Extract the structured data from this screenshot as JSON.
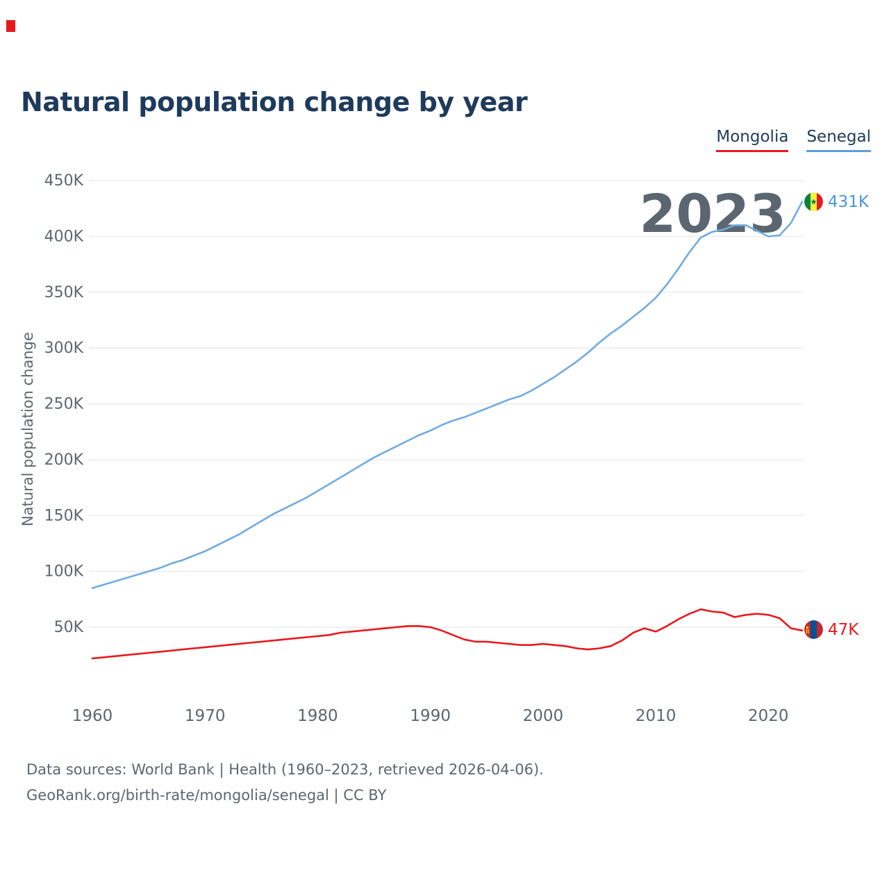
{
  "title": "Natural population change by year",
  "watermark": "2023",
  "legend": [
    {
      "label": "Mongolia",
      "color": "#e8191d"
    },
    {
      "label": "Senegal",
      "color": "#5ba0dd"
    }
  ],
  "end_labels": {
    "senegal": "431K",
    "mongolia": "47K"
  },
  "footer": {
    "line1": "Data sources: World Bank | Health (1960–2023, retrieved 2026-04-06).",
    "line2": "GeoRank.org/birth-rate/mongolia/senegal | CC BY"
  },
  "chart_data": {
    "type": "line",
    "title": "Natural population change by year",
    "xlabel": "",
    "ylabel": "Natural population change",
    "units": "thousands (K) per year",
    "x_range": [
      1960,
      2023
    ],
    "ylim": [
      0,
      465
    ],
    "yticks": [
      50,
      100,
      150,
      200,
      250,
      300,
      350,
      400,
      450
    ],
    "ytick_labels": [
      "50K",
      "100K",
      "150K",
      "200K",
      "250K",
      "300K",
      "350K",
      "400K",
      "450K"
    ],
    "xticks": [
      1960,
      1970,
      1980,
      1990,
      2000,
      2010,
      2020
    ],
    "grid": true,
    "legend_position": "top-right",
    "x": [
      1960,
      1961,
      1962,
      1963,
      1964,
      1965,
      1966,
      1967,
      1968,
      1969,
      1970,
      1971,
      1972,
      1973,
      1974,
      1975,
      1976,
      1977,
      1978,
      1979,
      1980,
      1981,
      1982,
      1983,
      1984,
      1985,
      1986,
      1987,
      1988,
      1989,
      1990,
      1991,
      1992,
      1993,
      1994,
      1995,
      1996,
      1997,
      1998,
      1999,
      2000,
      2001,
      2002,
      2003,
      2004,
      2005,
      2006,
      2007,
      2008,
      2009,
      2010,
      2011,
      2012,
      2013,
      2014,
      2015,
      2016,
      2017,
      2018,
      2019,
      2020,
      2021,
      2022,
      2023
    ],
    "series": [
      {
        "name": "Senegal",
        "color": "#70abe2",
        "end_value_label": "431K",
        "values": [
          85,
          88,
          91,
          94,
          97,
          100,
          103,
          107,
          110,
          114,
          118,
          123,
          128,
          133,
          139,
          145,
          151,
          156,
          161,
          166,
          172,
          178,
          184,
          190,
          196,
          202,
          207,
          212,
          217,
          222,
          226,
          231,
          235,
          238,
          242,
          246,
          250,
          254,
          257,
          262,
          268,
          274,
          281,
          288,
          296,
          305,
          313,
          320,
          328,
          336,
          345,
          357,
          371,
          386,
          399,
          404,
          406,
          410,
          410,
          405,
          400,
          401,
          412,
          431
        ]
      },
      {
        "name": "Mongolia",
        "color": "#e8191d",
        "end_value_label": "47K",
        "values": [
          22,
          23,
          24,
          25,
          26,
          27,
          28,
          29,
          30,
          31,
          32,
          33,
          34,
          35,
          36,
          37,
          38,
          39,
          40,
          41,
          42,
          43,
          45,
          46,
          47,
          48,
          49,
          50,
          51,
          51,
          50,
          47,
          43,
          39,
          37,
          37,
          36,
          35,
          34,
          34,
          35,
          34,
          33,
          31,
          30,
          31,
          33,
          38,
          45,
          49,
          46,
          51,
          57,
          62,
          66,
          64,
          63,
          59,
          61,
          62,
          61,
          58,
          49,
          47
        ]
      }
    ]
  }
}
